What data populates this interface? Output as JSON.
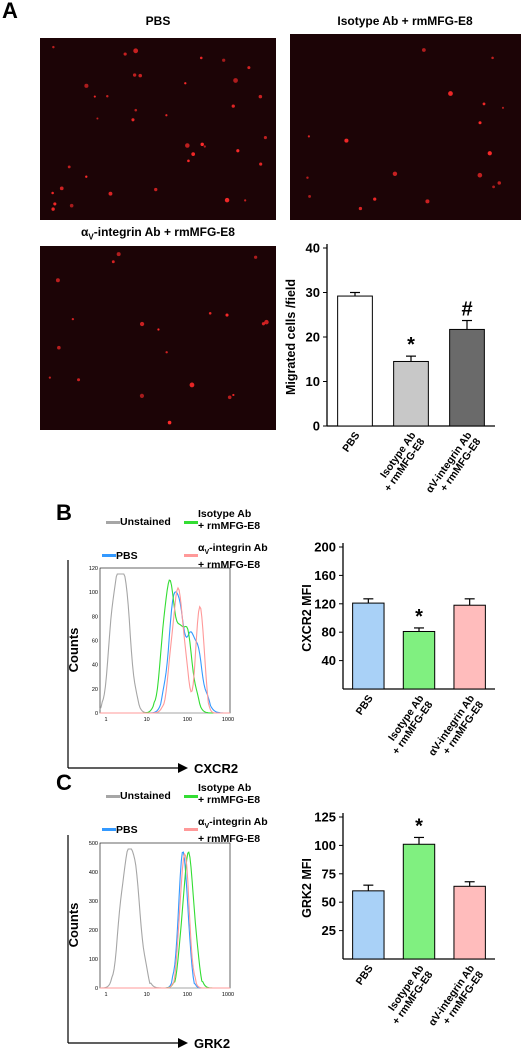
{
  "panel_a": {
    "letter": "A",
    "images": [
      {
        "title": "PBS",
        "title_html": null
      },
      {
        "title": "Isotype Ab + rmMFG-E8"
      },
      {
        "title_prefix": "α",
        "title_sub": "V",
        "title_suffix": "-integrin Ab + rmMFG-E8"
      }
    ]
  },
  "panel_b": {
    "letter": "B",
    "legend": {
      "unstained": "Unstained",
      "isotype_line1": "Isotype Ab",
      "isotype_line2": "+ rmMFG-E8",
      "pbs": "PBS",
      "integrin_prefix": "α",
      "integrin_sub": "V",
      "integrin_line1": "-integrin Ab",
      "integrin_line2": "+ rmMFG-E8"
    },
    "hist": {
      "ylabel": "Counts",
      "xlabel": "CXCR2",
      "yticks": [
        "0",
        "20",
        "40",
        "60",
        "80",
        "100",
        "120"
      ],
      "xticks": [
        "1",
        "10",
        "100",
        "1000"
      ]
    }
  },
  "panel_c": {
    "letter": "C",
    "legend": {
      "unstained": "Unstained",
      "isotype_line1": "Isotype Ab",
      "isotype_line2": "+ rmMFG-E8",
      "pbs": "PBS",
      "integrin_prefix": "α",
      "integrin_sub": "V",
      "integrin_line1": "-integrin Ab",
      "integrin_line2": "+ rmMFG-E8"
    },
    "hist": {
      "ylabel": "Counts",
      "xlabel": "GRK2",
      "yticks": [
        "0",
        "100",
        "200",
        "300",
        "400",
        "500"
      ],
      "xticks": [
        "1",
        "10",
        "100",
        "1000"
      ]
    }
  },
  "colors": {
    "unstained": "#a6a6a6",
    "isotype": "#33dd33",
    "pbs": "#3399ff",
    "integrin": "#ff9999",
    "bar_pbs_a": "#ffffff",
    "bar_iso_a": "#c8c8c8",
    "bar_int_a": "#6a6a6a",
    "bar_pbs": "#a9d1f7",
    "bar_iso": "#80f080",
    "bar_int": "#ffbcbc"
  },
  "chart_data": [
    {
      "type": "bar",
      "categories": [
        "PBS",
        "Isotype Ab + rmMFG-E8",
        "αV-integrin Ab + rmMFG-E8"
      ],
      "values": [
        29.2,
        14.5,
        21.7
      ],
      "errors": [
        0.8,
        1.2,
        2.0
      ],
      "annotations": [
        "",
        "*",
        "#"
      ],
      "ylabel": "Migrated cells /field",
      "ylim": [
        0,
        40
      ],
      "yticks": [
        "0",
        "10",
        "20",
        "30",
        "40"
      ],
      "xlabels": [
        [
          "PBS"
        ],
        [
          "Isotype Ab",
          "+ rmMFG-E8"
        ],
        [
          "αV-integrin Ab",
          "+ rmMFG-E8"
        ]
      ]
    },
    {
      "type": "bar",
      "categories": [
        "PBS",
        "Isotype Ab + rmMFG-E8",
        "αV-integrin Ab + rmMFG-E8"
      ],
      "values": [
        121,
        81,
        118
      ],
      "errors": [
        6,
        5,
        9
      ],
      "annotations": [
        "",
        "*",
        ""
      ],
      "ylabel": "CXCR2 MFI",
      "ylim": [
        0,
        200
      ],
      "yticks": [
        "40",
        "80",
        "120",
        "160",
        "200"
      ],
      "xlabels": [
        [
          "PBS"
        ],
        [
          "Isotype Ab",
          "+ rmMFG-E8"
        ],
        [
          "αV-integrin Ab",
          "+ rmMFG-E8"
        ]
      ]
    },
    {
      "type": "bar",
      "categories": [
        "PBS",
        "Isotype Ab + rmMFG-E8",
        "αV-integrin Ab + rmMFG-E8"
      ],
      "values": [
        60,
        101,
        64
      ],
      "errors": [
        5,
        6,
        4
      ],
      "annotations": [
        "",
        "*",
        ""
      ],
      "ylabel": "GRK2 MFI",
      "ylim": [
        0,
        125
      ],
      "yticks": [
        "25",
        "50",
        "75",
        "100",
        "125"
      ],
      "xlabels": [
        [
          "PBS"
        ],
        [
          "Isotype Ab",
          "+ rmMFG-E8"
        ],
        [
          "αV-integrin Ab",
          "+ rmMFG-E8"
        ]
      ]
    }
  ]
}
